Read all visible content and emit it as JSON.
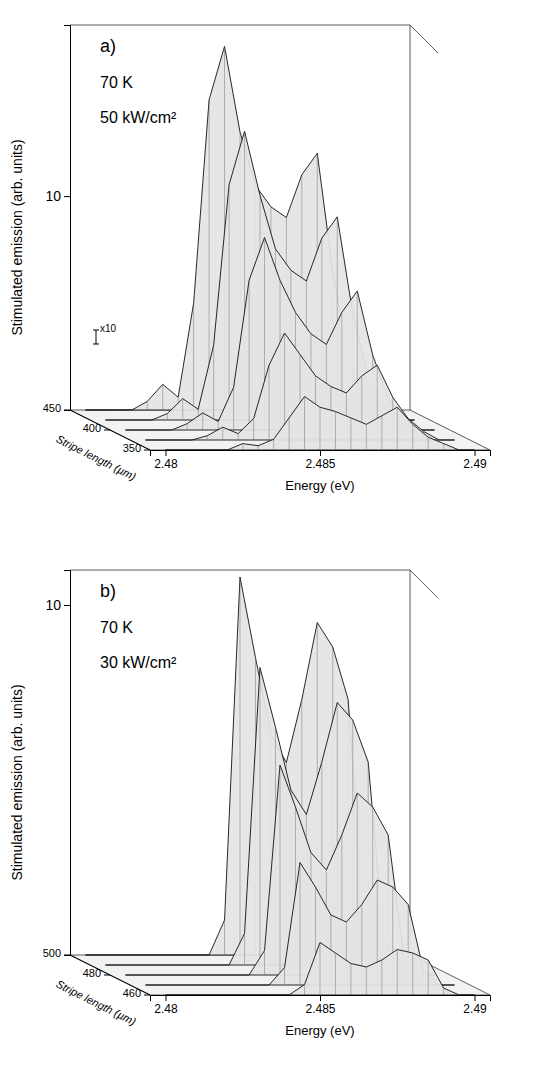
{
  "chart_data": [
    {
      "type": "waterfall",
      "title": "a)",
      "annotations": [
        "70 K",
        "50 kW/cm²"
      ],
      "scale_label": "x10",
      "y_label": "Stimulated emission (arb. units)",
      "x_label": "Energy (eV)",
      "z_label": "Stripe length (µm)",
      "color": "#e4e4e4",
      "x": [
        2.48,
        2.4805,
        2.481,
        2.4815,
        2.482,
        2.4825,
        2.483,
        2.4835,
        2.484,
        2.4845,
        2.485,
        2.4855,
        2.486,
        2.4865,
        2.487,
        2.4875,
        2.488,
        2.4885,
        2.489,
        2.4895,
        2.49
      ],
      "xlim": [
        2.4795,
        2.4905
      ],
      "xticks": [
        2.48,
        2.485,
        2.49
      ],
      "ylim": [
        0,
        18
      ],
      "yticks": [
        10
      ],
      "zlim": [
        350,
        450
      ],
      "zticks": [
        350,
        400,
        450
      ],
      "series": [
        {
          "z": 350,
          "values": [
            0,
            0,
            0,
            0,
            0,
            0.3,
            0.2,
            0.5,
            1.5,
            2.5,
            2.0,
            1.8,
            1.5,
            1.2,
            1.6,
            2.0,
            1.2,
            0.6,
            0.3,
            0,
            0
          ]
        },
        {
          "z": 375,
          "values": [
            0,
            0,
            0,
            0,
            0.2,
            0.6,
            0.3,
            1.0,
            3.5,
            5.0,
            4.0,
            3.0,
            2.5,
            2.2,
            3.0,
            3.5,
            2.0,
            1.0,
            0.4,
            0,
            0
          ]
        },
        {
          "z": 400,
          "values": [
            0,
            0,
            0,
            0,
            0.3,
            0.8,
            0.4,
            2.0,
            7.0,
            9.0,
            7.0,
            5.5,
            4.5,
            4.0,
            5.5,
            6.5,
            3.5,
            1.5,
            0.5,
            0,
            0
          ]
        },
        {
          "z": 425,
          "values": [
            0,
            0,
            0,
            0,
            0.3,
            1.0,
            0.5,
            3.5,
            11.0,
            13.5,
            10.5,
            8.0,
            7.0,
            6.5,
            8.5,
            9.5,
            5.0,
            2.0,
            0.6,
            0,
            0
          ]
        },
        {
          "z": 450,
          "values": [
            0,
            0,
            0,
            0,
            0.4,
            1.2,
            0.6,
            5.0,
            14.5,
            17.0,
            13.0,
            10.5,
            9.5,
            9.0,
            11.0,
            12.0,
            6.5,
            2.5,
            0.8,
            0,
            0
          ]
        }
      ]
    },
    {
      "type": "waterfall",
      "title": "b)",
      "annotations": [
        "70 K",
        "30 kW/cm²"
      ],
      "y_label": "Stimulated emission (arb. units)",
      "x_label": "Energy (eV)",
      "z_label": "Stripe length (µm)",
      "color": "#e4e4e4",
      "x": [
        2.48,
        2.4805,
        2.481,
        2.4815,
        2.482,
        2.4825,
        2.483,
        2.4835,
        2.484,
        2.4845,
        2.485,
        2.4855,
        2.486,
        2.4865,
        2.487,
        2.4875,
        2.488,
        2.4885,
        2.489,
        2.4895,
        2.49
      ],
      "xlim": [
        2.4795,
        2.4905
      ],
      "xticks": [
        2.48,
        2.485,
        2.49
      ],
      "ylim": [
        0,
        11
      ],
      "yticks": [
        10
      ],
      "zlim": [
        460,
        500
      ],
      "zticks": [
        460,
        480,
        500
      ],
      "series": [
        {
          "z": 460,
          "values": [
            0,
            0,
            0,
            0,
            0,
            0,
            0,
            0,
            0,
            0.3,
            1.5,
            1.2,
            0.9,
            0.8,
            1.0,
            1.3,
            1.2,
            1.0,
            0.2,
            0,
            0
          ]
        },
        {
          "z": 470,
          "values": [
            0,
            0,
            0,
            0,
            0,
            0,
            0,
            0,
            0,
            0.5,
            3.5,
            2.8,
            2.0,
            1.8,
            2.3,
            3.0,
            2.8,
            2.3,
            0.4,
            0,
            0
          ]
        },
        {
          "z": 480,
          "values": [
            0,
            0,
            0,
            0,
            0,
            0,
            0,
            0,
            0,
            0.7,
            6.0,
            4.8,
            3.5,
            3.0,
            4.0,
            5.2,
            4.8,
            4.0,
            0.6,
            0,
            0
          ]
        },
        {
          "z": 490,
          "values": [
            0,
            0,
            0,
            0,
            0,
            0,
            0,
            0,
            0,
            0.9,
            8.5,
            6.8,
            5.0,
            4.3,
            5.8,
            7.5,
            7.0,
            5.8,
            0.8,
            0,
            0
          ]
        },
        {
          "z": 500,
          "values": [
            0,
            0,
            0,
            0,
            0,
            0,
            0,
            0,
            0,
            1.0,
            10.8,
            8.5,
            6.3,
            5.5,
            7.3,
            9.5,
            8.8,
            7.3,
            1.0,
            0,
            0
          ]
        }
      ]
    }
  ]
}
